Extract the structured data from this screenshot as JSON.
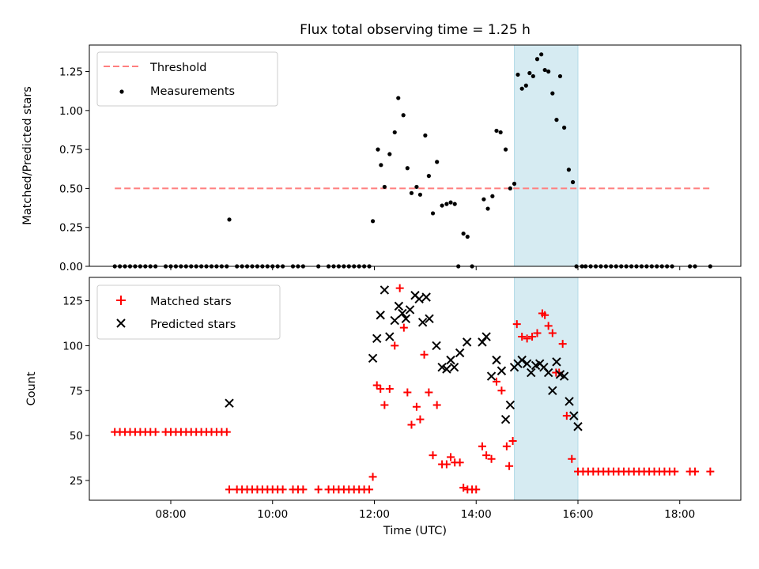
{
  "chart_data": [
    {
      "id": "ratio",
      "type": "scatter",
      "title": "Flux total observing time = 1.25 h",
      "xlabel": "",
      "ylabel": "Matched/Predicted stars",
      "xlim": [
        6.4,
        19.2
      ],
      "ylim": [
        0,
        1.42
      ],
      "yticks": [
        "0.00",
        "0.25",
        "0.50",
        "0.75",
        "1.00",
        "1.25"
      ],
      "legend_position": "top-left",
      "highlight_span": [
        14.75,
        16.0
      ],
      "highlight_color": "#add8e6",
      "threshold": {
        "name": "Threshold",
        "y": 0.5,
        "x": [
          6.9,
          18.6
        ],
        "color": "#ff7f7f"
      },
      "measurements": {
        "name": "Measurements",
        "color": "#000000",
        "x": [
          6.9,
          7.0,
          7.1,
          7.2,
          7.3,
          7.4,
          7.5,
          7.6,
          7.7,
          7.9,
          8.0,
          8.1,
          8.2,
          8.3,
          8.4,
          8.5,
          8.6,
          8.7,
          8.8,
          8.9,
          9.0,
          9.1,
          9.15,
          9.3,
          9.4,
          9.5,
          9.6,
          9.7,
          9.8,
          9.9,
          10.0,
          10.1,
          10.2,
          10.4,
          10.5,
          10.6,
          10.9,
          11.1,
          11.2,
          11.3,
          11.4,
          11.5,
          11.6,
          11.7,
          11.8,
          11.9,
          11.97,
          12.07,
          12.13,
          12.2,
          12.3,
          12.4,
          12.47,
          12.57,
          12.65,
          12.73,
          12.83,
          12.9,
          13.0,
          13.07,
          13.15,
          13.23,
          13.33,
          13.42,
          13.5,
          13.58,
          13.65,
          13.75,
          13.83,
          13.92,
          14.15,
          14.23,
          14.32,
          14.4,
          14.48,
          14.58,
          14.67,
          14.75,
          14.82,
          14.9,
          14.98,
          15.05,
          15.12,
          15.2,
          15.28,
          15.35,
          15.42,
          15.5,
          15.58,
          15.65,
          15.73,
          15.82,
          15.9,
          15.97,
          16.08,
          16.15,
          16.25,
          16.35,
          16.45,
          16.55,
          16.65,
          16.75,
          16.85,
          16.95,
          17.05,
          17.15,
          17.25,
          17.35,
          17.45,
          17.55,
          17.65,
          17.75,
          17.85,
          18.2,
          18.3,
          18.6
        ],
        "y": [
          0,
          0,
          0,
          0,
          0,
          0,
          0,
          0,
          0,
          0,
          0,
          0,
          0,
          0,
          0,
          0,
          0,
          0,
          0,
          0,
          0,
          0,
          0.3,
          0,
          0,
          0,
          0,
          0,
          0,
          0,
          0,
          0,
          0,
          0,
          0,
          0,
          0,
          0,
          0,
          0,
          0,
          0,
          0,
          0,
          0,
          0,
          0.29,
          0.75,
          0.65,
          0.51,
          0.72,
          0.86,
          1.08,
          0.97,
          0.63,
          0.47,
          0.51,
          0.46,
          0.84,
          0.58,
          0.34,
          0.67,
          0.39,
          0.4,
          0.41,
          0.4,
          0.0,
          0.21,
          0.19,
          0.0,
          0.43,
          0.37,
          0.45,
          0.87,
          0.86,
          0.75,
          0.5,
          0.53,
          1.23,
          1.14,
          1.16,
          1.24,
          1.22,
          1.33,
          1.36,
          1.26,
          1.25,
          1.11,
          0.94,
          1.22,
          0.89,
          0.62,
          0.54,
          0,
          0,
          0,
          0,
          0,
          0,
          0,
          0,
          0,
          0,
          0,
          0,
          0,
          0,
          0,
          0,
          0,
          0,
          0,
          0,
          0,
          0,
          0
        ]
      }
    },
    {
      "id": "counts",
      "type": "scatter",
      "title": "",
      "xlabel": "Time (UTC)",
      "ylabel": "Count",
      "xlim": [
        6.4,
        19.2
      ],
      "ylim": [
        14,
        138
      ],
      "yticks": [
        "25",
        "50",
        "75",
        "100",
        "125"
      ],
      "xticks": [
        "08:00",
        "10:00",
        "12:00",
        "14:00",
        "16:00",
        "18:00"
      ],
      "legend_position": "top-left",
      "highlight_span": [
        14.75,
        16.0
      ],
      "highlight_color": "#add8e6",
      "matched": {
        "name": "Matched stars",
        "color": "#ff0000",
        "x": [
          6.9,
          7.0,
          7.1,
          7.2,
          7.3,
          7.4,
          7.5,
          7.6,
          7.7,
          7.9,
          8.0,
          8.1,
          8.2,
          8.3,
          8.4,
          8.5,
          8.6,
          8.7,
          8.8,
          8.9,
          9.0,
          9.1,
          9.15,
          9.3,
          9.4,
          9.5,
          9.6,
          9.7,
          9.8,
          9.9,
          10.0,
          10.1,
          10.2,
          10.4,
          10.5,
          10.6,
          10.9,
          11.1,
          11.2,
          11.3,
          11.4,
          11.5,
          11.6,
          11.7,
          11.8,
          11.9,
          11.97,
          12.05,
          12.12,
          12.2,
          12.3,
          12.4,
          12.5,
          12.58,
          12.65,
          12.73,
          12.83,
          12.9,
          12.98,
          13.07,
          13.15,
          13.23,
          13.33,
          13.42,
          13.5,
          13.58,
          13.68,
          13.75,
          13.83,
          13.92,
          14.0,
          14.12,
          14.2,
          14.3,
          14.4,
          14.5,
          14.6,
          14.65,
          14.72,
          14.8,
          14.9,
          15.0,
          15.1,
          15.2,
          15.3,
          15.35,
          15.42,
          15.5,
          15.57,
          15.63,
          15.7,
          15.78,
          15.88,
          16.0,
          16.1,
          16.2,
          16.3,
          16.4,
          16.5,
          16.6,
          16.7,
          16.8,
          16.9,
          17.0,
          17.1,
          17.2,
          17.3,
          17.4,
          17.5,
          17.6,
          17.7,
          17.8,
          17.9,
          18.2,
          18.3,
          18.6
        ],
        "y": [
          52,
          52,
          52,
          52,
          52,
          52,
          52,
          52,
          52,
          52,
          52,
          52,
          52,
          52,
          52,
          52,
          52,
          52,
          52,
          52,
          52,
          52,
          20,
          20,
          20,
          20,
          20,
          20,
          20,
          20,
          20,
          20,
          20,
          20,
          20,
          20,
          20,
          20,
          20,
          20,
          20,
          20,
          20,
          20,
          20,
          20,
          27,
          78,
          76,
          67,
          76,
          100,
          132,
          110,
          74,
          56,
          66,
          59,
          95,
          74,
          39,
          67,
          34,
          34,
          38,
          35,
          35,
          21,
          20,
          20,
          20,
          44,
          39,
          37,
          80,
          75,
          44,
          33,
          47,
          112,
          105,
          104,
          105,
          107,
          118,
          117,
          111,
          107,
          85,
          85,
          101,
          61,
          37,
          30,
          30,
          30,
          30,
          30,
          30,
          30,
          30,
          30,
          30,
          30,
          30,
          30,
          30,
          30,
          30,
          30,
          30,
          30,
          30,
          30,
          30,
          30
        ]
      },
      "predicted": {
        "name": "Predicted stars",
        "color": "#000000",
        "x": [
          9.15,
          11.97,
          12.05,
          12.12,
          12.2,
          12.3,
          12.4,
          12.48,
          12.55,
          12.62,
          12.7,
          12.8,
          12.88,
          12.95,
          13.02,
          13.08,
          13.22,
          13.33,
          13.42,
          13.5,
          13.57,
          13.68,
          13.82,
          14.12,
          14.2,
          14.3,
          14.4,
          14.5,
          14.58,
          14.67,
          14.75,
          14.82,
          14.9,
          15.0,
          15.08,
          15.17,
          15.25,
          15.33,
          15.42,
          15.5,
          15.58,
          15.65,
          15.73,
          15.83,
          15.92,
          16.0
        ],
        "y": [
          68,
          93,
          104,
          117,
          131,
          105,
          114,
          122,
          118,
          115,
          120,
          128,
          126,
          113,
          127,
          115,
          100,
          88,
          87,
          92,
          88,
          96,
          102,
          102,
          105,
          83,
          92,
          86,
          59,
          67,
          88,
          90,
          92,
          90,
          85,
          89,
          90,
          88,
          85,
          75,
          91,
          84,
          83,
          69,
          61,
          55
        ]
      }
    }
  ]
}
